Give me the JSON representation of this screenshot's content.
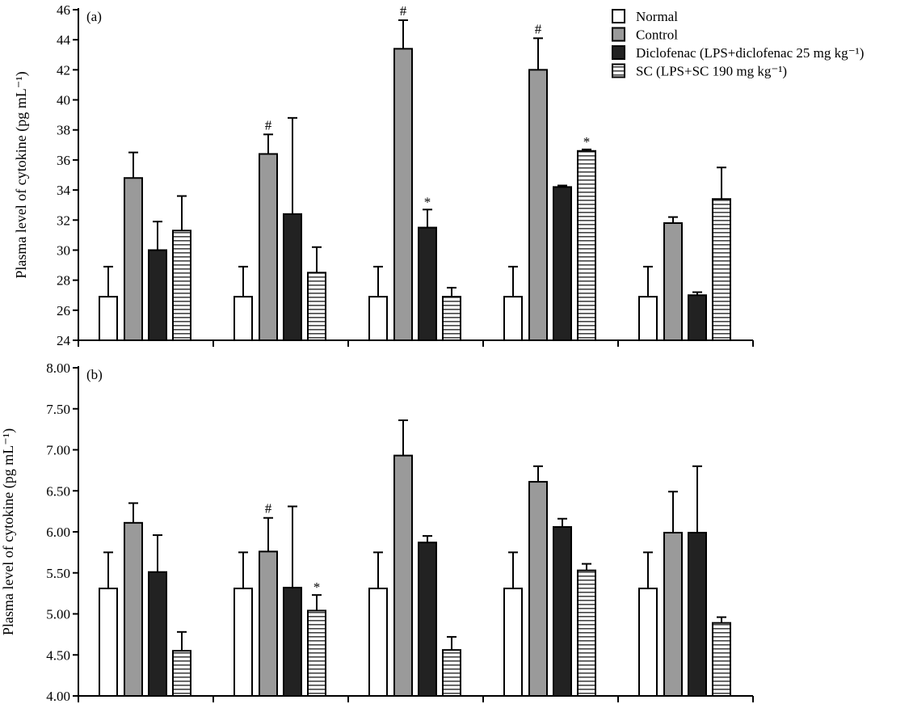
{
  "legend": [
    "Normal",
    "Control",
    "Diclofenac (LPS+diclofenac 25 mg kg⁻¹)",
    "SC (LPS+SC 190 mg kg⁻¹)"
  ],
  "colors": {
    "Normal": "#ffffff",
    "Control": "#9a9a9a",
    "Diclofenac": "#222222",
    "SC": "hatched-horizontal"
  },
  "chart_data": [
    {
      "type": "bar",
      "panel_label": "(a)",
      "ylabel": "Plasma level of cytokine (pg mL⁻¹)",
      "ylim": [
        24,
        46
      ],
      "yticks": [
        "24",
        "26",
        "28",
        "30",
        "32",
        "34",
        "36",
        "38",
        "40",
        "42",
        "44",
        "46"
      ],
      "categories": [
        "",
        "",
        "",
        "",
        ""
      ],
      "series": [
        {
          "name": "Normal",
          "values": [
            26.9,
            26.9,
            26.9,
            26.9,
            26.9
          ],
          "error_top": [
            28.9,
            28.9,
            28.9,
            28.9,
            28.9
          ]
        },
        {
          "name": "Control",
          "values": [
            34.8,
            36.4,
            43.4,
            42.0,
            31.8
          ],
          "error_top": [
            36.5,
            37.7,
            45.3,
            44.1,
            32.2
          ]
        },
        {
          "name": "Diclofenac",
          "values": [
            30.0,
            32.4,
            31.5,
            34.2,
            27.0
          ],
          "error_top": [
            31.9,
            38.8,
            32.7,
            34.3,
            27.2
          ]
        },
        {
          "name": "SC",
          "values": [
            31.3,
            28.5,
            26.9,
            36.6,
            33.4
          ],
          "error_top": [
            33.6,
            30.2,
            27.5,
            36.7,
            35.5
          ]
        }
      ],
      "annotations": [
        {
          "group": 1,
          "series": "Control",
          "text": "#"
        },
        {
          "group": 2,
          "series": "Control",
          "text": "#"
        },
        {
          "group": 2,
          "series": "Diclofenac",
          "text": "*"
        },
        {
          "group": 3,
          "series": "Control",
          "text": "#"
        },
        {
          "group": 3,
          "series": "SC",
          "text": "*"
        }
      ]
    },
    {
      "type": "bar",
      "panel_label": "(b)",
      "ylabel": "Plasma level of cytokine (pg mL⁻¹)",
      "ylim": [
        4.0,
        8.0
      ],
      "yticks": [
        "4.00",
        "4.50",
        "5.00",
        "5.50",
        "6.00",
        "6.50",
        "7.00",
        "7.50",
        "8.00"
      ],
      "categories": [
        "",
        "",
        "",
        "",
        ""
      ],
      "series": [
        {
          "name": "Normal",
          "values": [
            5.31,
            5.31,
            5.31,
            5.31,
            5.31
          ],
          "error_top": [
            5.75,
            5.75,
            5.75,
            5.75,
            5.75
          ]
        },
        {
          "name": "Control",
          "values": [
            6.11,
            5.76,
            6.93,
            6.61,
            5.99
          ],
          "error_top": [
            6.35,
            6.17,
            7.36,
            6.8,
            6.49
          ]
        },
        {
          "name": "Diclofenac",
          "values": [
            5.51,
            5.32,
            5.87,
            6.06,
            5.99
          ],
          "error_top": [
            5.96,
            6.31,
            5.95,
            6.16,
            6.8
          ]
        },
        {
          "name": "SC",
          "values": [
            4.55,
            5.04,
            4.56,
            5.53,
            4.89
          ],
          "error_top": [
            4.78,
            5.23,
            4.72,
            5.61,
            4.96
          ]
        }
      ],
      "annotations": [
        {
          "group": 1,
          "series": "Control",
          "text": "#"
        },
        {
          "group": 1,
          "series": "SC",
          "text": "*"
        }
      ]
    }
  ]
}
